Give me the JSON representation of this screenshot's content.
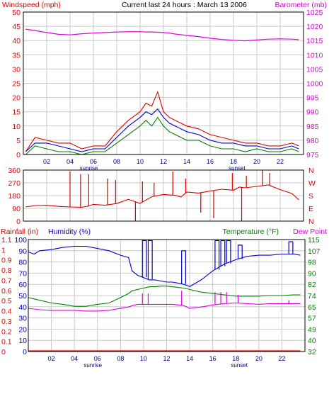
{
  "title": "Current last 24 hours : March 13 2006",
  "colors": {
    "wind": "#e00000",
    "wind_avg": "#0000cc",
    "wind_low": "#008000",
    "barometer": "#e000e0",
    "direction": "#e00000",
    "humidity": "#0000cc",
    "temperature": "#008000",
    "dewpoint": "#e000e0",
    "rainfall": "#e00000",
    "grid": "#c8c8c8"
  },
  "x_axis": {
    "ticks": [
      "02",
      "04",
      "06",
      "08",
      "10",
      "12",
      "14",
      "16",
      "18",
      "20",
      "22"
    ],
    "tick_hours": [
      2,
      4,
      6,
      8,
      10,
      12,
      14,
      16,
      18,
      20,
      22
    ],
    "sunrise_label": "sunrise",
    "sunset_label": "sunset",
    "sunrise_hour": 5.6,
    "sunset_hour": 18.3,
    "range": [
      0,
      24
    ]
  },
  "chart_data": [
    {
      "type": "line",
      "title": "Current last 24 hours : March 13 2006",
      "ylabel_left": "Windspeed (mph)",
      "ylabel_right": "Barometer (mb)",
      "ylim_left": [
        0,
        50
      ],
      "ylim_right": [
        975,
        1025
      ],
      "yticks_left": [
        "0",
        "5",
        "10",
        "15",
        "20",
        "25",
        "30",
        "35",
        "40",
        "45",
        "50"
      ],
      "yticks_right": [
        "975",
        "980",
        "985",
        "990",
        "995",
        "1000",
        "1005",
        "1010",
        "1015",
        "1020",
        "1025"
      ],
      "x": [
        0.2,
        1,
        2,
        3,
        4,
        5,
        6,
        7,
        8,
        9,
        10,
        10.5,
        11,
        11.5,
        12,
        12.5,
        13,
        14,
        15,
        16,
        17,
        18,
        19,
        20,
        21,
        22,
        23,
        23.6
      ],
      "series": [
        {
          "axis": "left",
          "values": [
            1,
            6,
            5,
            4,
            4,
            2,
            3,
            3,
            8,
            12,
            15,
            18,
            17,
            22,
            15,
            13,
            12,
            10,
            9,
            7,
            6,
            5,
            4,
            4,
            3,
            3,
            4,
            3
          ]
        },
        {
          "axis": "left",
          "values": [
            1,
            4,
            4,
            3,
            2,
            1,
            2,
            2,
            6,
            10,
            13,
            15,
            14,
            16,
            13,
            11,
            10,
            8,
            7,
            5,
            4,
            4,
            3,
            3,
            2,
            2,
            3,
            2
          ]
        },
        {
          "axis": "left",
          "values": [
            0,
            3,
            2,
            1,
            1,
            0,
            1,
            1,
            4,
            7,
            10,
            12,
            10,
            13,
            10,
            8,
            7,
            5,
            5,
            3,
            2,
            2,
            1,
            2,
            1,
            1,
            2,
            1
          ]
        },
        {
          "axis": "right",
          "values": [
            1019,
            1018.5,
            1017.8,
            1017.2,
            1017,
            1017.4,
            1017.6,
            1017.8,
            1018,
            1018.1,
            1018.1,
            1018,
            1018,
            1017.9,
            1017.8,
            1017.6,
            1017.3,
            1016.8,
            1016.4,
            1015.8,
            1015.4,
            1015.1,
            1014.9,
            1015.2,
            1015.5,
            1015.6,
            1015.5,
            1015.3
          ]
        }
      ]
    },
    {
      "type": "line",
      "yticks_left": [
        "0",
        "90",
        "180",
        "270",
        "360"
      ],
      "yticks_right": [
        "N",
        "E",
        "S",
        "W",
        "N"
      ],
      "ylim": [
        0,
        360
      ],
      "x": [
        0.2,
        1,
        2,
        3,
        4,
        5,
        5.5,
        6,
        7,
        8,
        9,
        10,
        11,
        12,
        13,
        13.5,
        14,
        15,
        16,
        17,
        18,
        18.5,
        19,
        20,
        21,
        22,
        23,
        23.6
      ],
      "series": [
        {
          "values": [
            100,
            110,
            112,
            104,
            100,
            98,
            105,
            118,
            112,
            124,
            154,
            125,
            172,
            188,
            182,
            170,
            205,
            198,
            212,
            225,
            218,
            240,
            235,
            245,
            255,
            222,
            195,
            150
          ]
        }
      ],
      "spikes": [
        {
          "x": 4.0,
          "to": 350
        },
        {
          "x": 4.9,
          "to": 330
        },
        {
          "x": 5.6,
          "to": 330
        },
        {
          "x": 7.2,
          "to": 300
        },
        {
          "x": 7.9,
          "to": 290
        },
        {
          "x": 9.6,
          "to": 0
        },
        {
          "x": 10.2,
          "to": 280
        },
        {
          "x": 11.2,
          "to": 270
        },
        {
          "x": 12.8,
          "to": 350
        },
        {
          "x": 13.9,
          "to": 300
        },
        {
          "x": 15.2,
          "to": 60
        },
        {
          "x": 16.3,
          "to": 20
        },
        {
          "x": 17.9,
          "to": 340
        },
        {
          "x": 18.7,
          "to": 0
        },
        {
          "x": 19.1,
          "to": 320
        },
        {
          "x": 20.5,
          "to": 360
        },
        {
          "x": 21.1,
          "to": 340
        }
      ]
    },
    {
      "type": "line",
      "ylabel_left_1": "Rainfall (in)",
      "ylabel_left_2": "Humidity (%)",
      "ylabel_right_1": "Temperature (°F)",
      "ylabel_right_2": "Dew Point",
      "yticks_rain": [
        "0",
        "0.1",
        "0.2",
        "0.3",
        "0.4",
        "0.5",
        "0.6",
        "0.7",
        "0.8",
        "0.9",
        "1",
        "1.1"
      ],
      "yticks_humidity": [
        "0",
        "10",
        "20",
        "30",
        "40",
        "50",
        "60",
        "70",
        "80",
        "90",
        "100"
      ],
      "yticks_temp": [
        "32",
        "40",
        "49",
        "57",
        "65",
        "74",
        "82",
        "90",
        "98",
        "107",
        "115"
      ],
      "ylim_humidity": [
        0,
        100
      ],
      "ylim_temp": [
        32,
        115
      ],
      "x": [
        0,
        0.5,
        1,
        2,
        3,
        4,
        5,
        6,
        7,
        8,
        8.7,
        9,
        9.5,
        10,
        10.5,
        11,
        11.5,
        12,
        12.5,
        13,
        13.5,
        14,
        15,
        16,
        17,
        18,
        19,
        20,
        21,
        22,
        23,
        23.6
      ],
      "series": [
        {
          "name": "Humidity (%)",
          "values": [
            89,
            87,
            90,
            91,
            93,
            94,
            94,
            92,
            90,
            86,
            84,
            72,
            68,
            66,
            64,
            64,
            63,
            62,
            62,
            61,
            60,
            58,
            64,
            72,
            78,
            82,
            85,
            86,
            86,
            87,
            87,
            86
          ]
        },
        {
          "name": "Temperature (°F)",
          "values": [
            72,
            71,
            70,
            68,
            67,
            65.5,
            65.5,
            67,
            68,
            72,
            75,
            77,
            78,
            79,
            80,
            80,
            80.5,
            80.5,
            80,
            79.5,
            79,
            78,
            76,
            75,
            74,
            73,
            73,
            73,
            73.5,
            73.5,
            74,
            74
          ]
        },
        {
          "name": "Dew Point",
          "values": [
            64,
            63.5,
            63,
            62.5,
            62.5,
            62.5,
            62,
            62,
            62.5,
            64,
            65,
            66,
            67,
            67,
            67,
            67,
            67,
            67,
            67,
            66.5,
            66,
            64,
            65,
            66.5,
            67.5,
            68,
            67.5,
            67,
            67.5,
            67.5,
            67.5,
            67.5
          ]
        },
        {
          "name": "Rainfall (in)",
          "values": [
            0,
            0,
            0,
            0,
            0,
            0,
            0,
            0,
            0,
            0,
            0,
            0,
            0,
            0,
            0,
            0,
            0,
            0,
            0,
            0,
            0,
            0,
            0,
            0,
            0,
            0,
            0,
            0,
            0,
            0,
            0,
            0
          ]
        }
      ],
      "humidity_spikes": [
        {
          "x": 9.9,
          "to": 99
        },
        {
          "x": 10.4,
          "to": 99
        },
        {
          "x": 13.3,
          "to": 90
        },
        {
          "x": 16.2,
          "to": 99
        },
        {
          "x": 16.7,
          "to": 99
        },
        {
          "x": 17.2,
          "to": 99
        },
        {
          "x": 18.2,
          "to": 95
        },
        {
          "x": 22.6,
          "to": 98
        }
      ],
      "dewpoint_spikes": [
        {
          "x": 9.9,
          "to": 75
        },
        {
          "x": 10.4,
          "to": 75
        },
        {
          "x": 13.3,
          "to": 77
        },
        {
          "x": 16.2,
          "to": 76
        },
        {
          "x": 16.7,
          "to": 76
        },
        {
          "x": 17.2,
          "to": 76
        },
        {
          "x": 18.2,
          "to": 74
        },
        {
          "x": 22.6,
          "to": 70
        }
      ]
    }
  ]
}
